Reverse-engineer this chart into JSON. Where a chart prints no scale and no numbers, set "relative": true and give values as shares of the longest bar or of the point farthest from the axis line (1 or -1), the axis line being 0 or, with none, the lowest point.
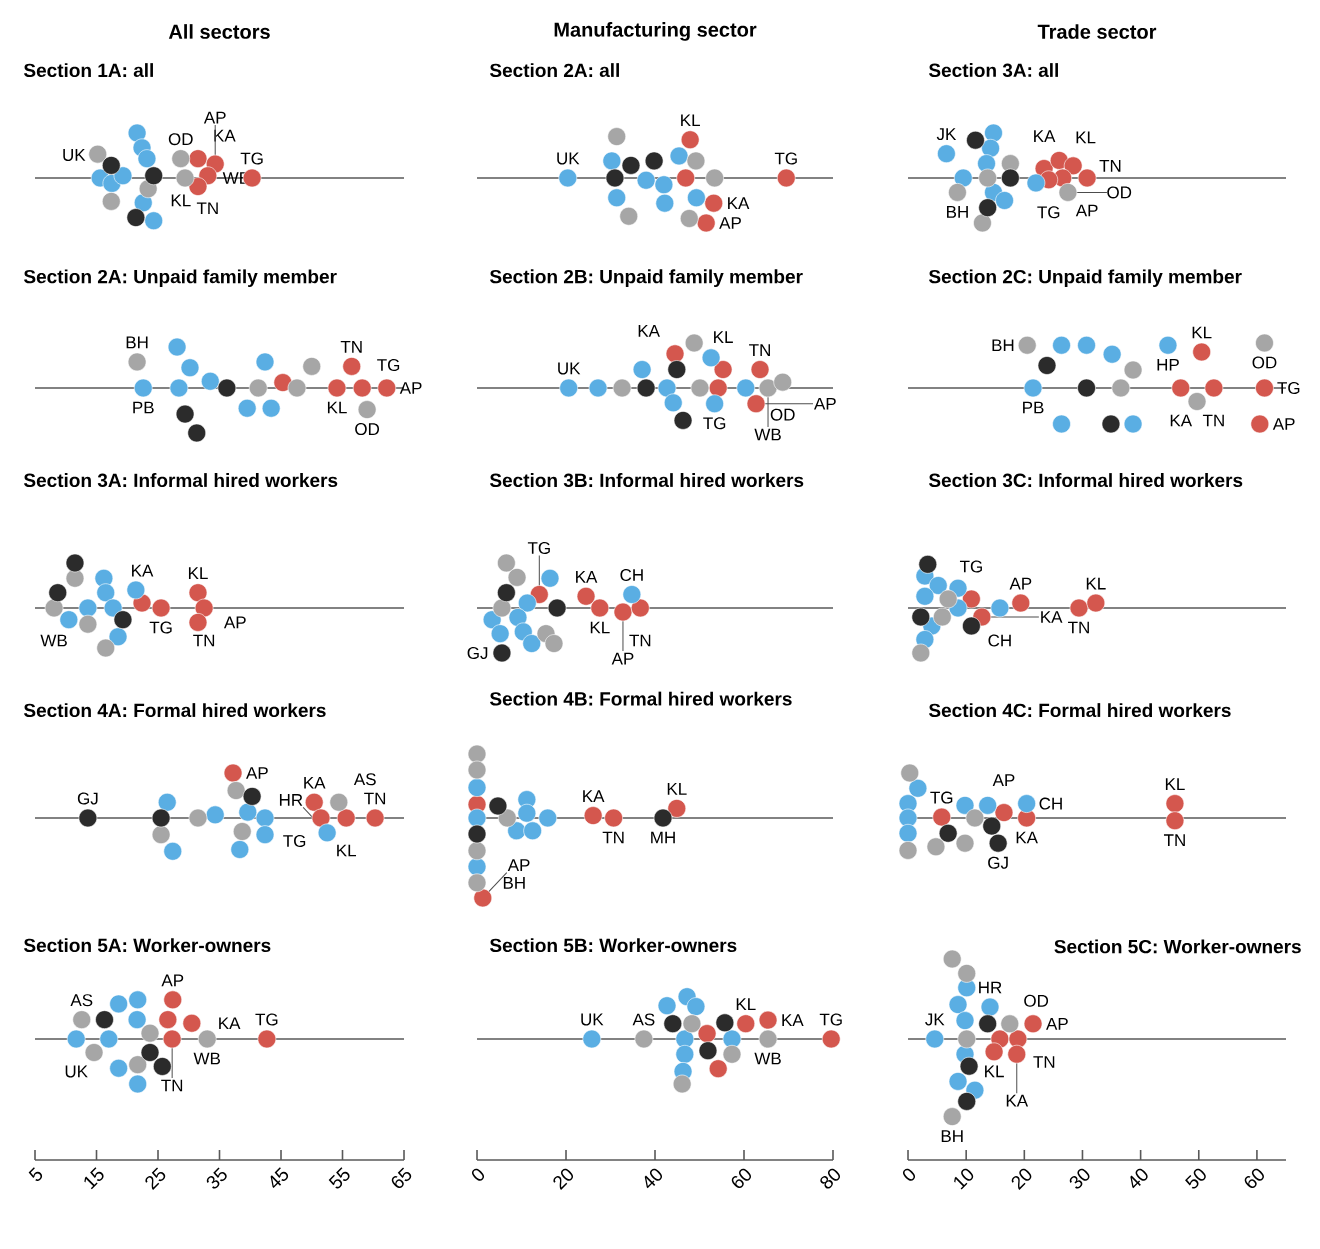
{
  "chart_data": [
    {
      "type": "scatter",
      "title": "Section 1A: all",
      "relative": true,
      "marker": "circle",
      "xlim": [
        5,
        65
      ],
      "annotations": [
        "All sectors",
        {
          "text": "UK",
          "x": 15.6,
          "y": 0
        },
        {
          "text": "OD",
          "x": 28.7,
          "y": 0.43
        },
        {
          "text": "KA",
          "x": 31.5,
          "y": 0.43
        },
        {
          "text": "AP",
          "x": 34.3,
          "y": 0.31
        },
        {
          "text": "TG",
          "x": 40.3,
          "y": 0
        },
        {
          "text": "TN",
          "x": 33.1,
          "y": 0.05
        },
        {
          "text": "WB",
          "x": 29.4,
          "y": 0
        },
        {
          "text": "KL",
          "x": 31.5,
          "y": -0.19
        }
      ],
      "series": [
        {
          "color": "#d4574e",
          "x": [
            31.5,
            34.3,
            33.1,
            31.5,
            40.3
          ],
          "values": [
            0.43,
            0.31,
            0.05,
            -0.19,
            0
          ]
        },
        {
          "color": "#5aaee3",
          "x": [
            21.6,
            22.4,
            23.2,
            15.6,
            17.5,
            19.3,
            22.6,
            24.3
          ],
          "values": [
            1.0,
            0.67,
            0.43,
            0,
            -0.12,
            0.05,
            -0.55,
            -0.95
          ]
        },
        {
          "color": "#a6a6a6",
          "x": [
            15.2,
            17.4,
            23.4,
            28.7,
            29.4
          ],
          "values": [
            0.53,
            -0.52,
            -0.24,
            0.43,
            0
          ]
        },
        {
          "color": "#2b2b2b",
          "x": [
            17.4,
            21.4,
            24.3
          ],
          "values": [
            0.28,
            -0.88,
            0.05
          ]
        }
      ]
    },
    {
      "type": "scatter",
      "title": "Section 2A: all",
      "relative": true,
      "marker": "circle",
      "xlim": [
        0,
        80
      ],
      "annotations": [
        "Manufacturing sector",
        {
          "text": "KL",
          "x": 47.9,
          "y": 0.85
        },
        {
          "text": "TG",
          "x": 69.5,
          "y": 0
        },
        {
          "text": "UK",
          "x": 20.4,
          "y": 0
        },
        {
          "text": "KA",
          "x": 53.2,
          "y": -0.56
        },
        {
          "text": "AP",
          "x": 51.5,
          "y": -1.0
        }
      ],
      "series": [
        {
          "color": "#d4574e",
          "x": [
            47.9,
            46.9,
            53.2,
            51.5,
            69.5
          ],
          "values": [
            0.85,
            0,
            -0.56,
            -1.0,
            0
          ]
        },
        {
          "color": "#5aaee3",
          "x": [
            20.4,
            30.3,
            31.4,
            38.0,
            42.0,
            42.2,
            45.4,
            49.3
          ],
          "values": [
            0,
            0.38,
            -0.44,
            -0.05,
            -0.15,
            -0.56,
            0.49,
            -0.44
          ]
        },
        {
          "color": "#a6a6a6",
          "x": [
            31.4,
            34.1,
            49.2,
            53.4,
            47.7
          ],
          "values": [
            0.92,
            -0.85,
            0.38,
            0,
            -0.9
          ]
        },
        {
          "color": "#2b2b2b",
          "x": [
            34.6,
            39.8,
            31.0
          ],
          "values": [
            0.28,
            0.38,
            0
          ]
        }
      ]
    },
    {
      "type": "scatter",
      "title": "Section 3A: all",
      "relative": true,
      "marker": "circle",
      "xlim": [
        0,
        65
      ],
      "annotations": [
        "Trade sector",
        {
          "text": "KA",
          "x": 23.4,
          "y": 0.21
        },
        {
          "text": "KL",
          "x": 26.0,
          "y": 0.39
        },
        {
          "text": "JK",
          "x": 6.6,
          "y": 0.54
        },
        {
          "text": "TN",
          "x": 28.4,
          "y": 0.27
        },
        {
          "text": "AP",
          "x": 30.8,
          "y": 0
        },
        {
          "text": "BH",
          "x": 8.5,
          "y": -0.32
        },
        {
          "text": "TG",
          "x": 24.2,
          "y": -0.04
        },
        {
          "text": "OD",
          "x": 27.5,
          "y": -0.32
        }
      ],
      "series": [
        {
          "color": "#d4574e",
          "x": [
            23.4,
            26.0,
            28.4,
            26.6,
            24.2,
            30.8
          ],
          "values": [
            0.21,
            0.39,
            0.27,
            0,
            -0.04,
            0
          ]
        },
        {
          "color": "#5aaee3",
          "x": [
            14.7,
            14.2,
            13.5,
            6.6,
            9.5,
            14.7,
            16.6,
            22.0
          ],
          "values": [
            1.0,
            0.66,
            0.32,
            0.54,
            0,
            -0.32,
            -0.5,
            -0.11
          ]
        },
        {
          "color": "#a6a6a6",
          "x": [
            17.6,
            13.7,
            8.5,
            12.8,
            27.5
          ],
          "values": [
            0.32,
            0,
            -0.32,
            -1.0,
            -0.32
          ]
        },
        {
          "color": "#2b2b2b",
          "x": [
            11.6,
            17.6,
            13.7
          ],
          "values": [
            0.84,
            0,
            -0.66
          ]
        }
      ]
    },
    {
      "type": "scatter",
      "title": "Section 2A: Unpaid family member",
      "relative": true,
      "marker": "circle",
      "xlim": [
        5,
        65
      ],
      "annotations": [
        {
          "text": "BH",
          "x": 21.6,
          "y": 0.58
        },
        {
          "text": "PB",
          "x": 22.6,
          "y": 0
        },
        {
          "text": "KL",
          "x": 54.1,
          "y": 0
        },
        {
          "text": "TN",
          "x": 56.5,
          "y": 0.48
        },
        {
          "text": "TG",
          "x": 58.2,
          "y": 0
        },
        {
          "text": "AP",
          "x": 62.2,
          "y": 0
        },
        {
          "text": "OD",
          "x": 59.0,
          "y": -0.48
        }
      ],
      "series": [
        {
          "color": "#d4574e",
          "x": [
            45.3,
            54.1,
            56.5,
            58.2,
            62.2
          ],
          "values": [
            0.12,
            0,
            0.48,
            0,
            0
          ]
        },
        {
          "color": "#5aaee3",
          "x": [
            22.6,
            28.1,
            30.2,
            28.4,
            33.5,
            42.4,
            39.5,
            43.4
          ],
          "values": [
            0,
            0.91,
            0.45,
            0,
            0.15,
            0.58,
            -0.45,
            -0.45
          ]
        },
        {
          "color": "#a6a6a6",
          "x": [
            21.6,
            41.3,
            47.6,
            50.0,
            59.0
          ],
          "values": [
            0.58,
            0,
            0,
            0.48,
            -0.48
          ]
        },
        {
          "color": "#2b2b2b",
          "x": [
            29.4,
            31.3,
            36.2
          ],
          "values": [
            -0.58,
            -1.0,
            0
          ]
        }
      ]
    },
    {
      "type": "scatter",
      "title": "Section 2B: Unpaid family member",
      "relative": true,
      "marker": "circle",
      "xlim": [
        0,
        80
      ],
      "annotations": [
        {
          "text": "KA",
          "x": 44.5,
          "y": 0.76
        },
        {
          "text": "KL",
          "x": 55.3,
          "y": 0.41
        },
        {
          "text": "UK",
          "x": 20.6,
          "y": 0
        },
        {
          "text": "TN",
          "x": 63.6,
          "y": 0.41
        },
        {
          "text": "OD",
          "x": 68.7,
          "y": 0.13
        },
        {
          "text": "WB",
          "x": 65.4,
          "y": 0
        },
        {
          "text": "TG",
          "x": 53.4,
          "y": -0.35
        },
        {
          "text": "AP",
          "x": 62.7,
          "y": -0.35
        }
      ],
      "series": [
        {
          "color": "#d4574e",
          "x": [
            44.5,
            55.3,
            54.2,
            63.6,
            62.7
          ],
          "values": [
            0.76,
            0.41,
            0,
            0.41,
            -0.35
          ]
        },
        {
          "color": "#5aaee3",
          "x": [
            20.6,
            27.2,
            37.1,
            42.7,
            44.1,
            52.6,
            53.4,
            60.4
          ],
          "values": [
            0,
            0,
            0.41,
            0,
            -0.33,
            0.67,
            -0.35,
            0
          ]
        },
        {
          "color": "#a6a6a6",
          "x": [
            32.6,
            48.8,
            50.1,
            65.4,
            68.7
          ],
          "values": [
            0,
            1.0,
            0,
            0,
            0.13
          ]
        },
        {
          "color": "#2b2b2b",
          "x": [
            38.0,
            44.9,
            46.3
          ],
          "values": [
            0,
            0.41,
            -0.72
          ]
        }
      ]
    },
    {
      "type": "scatter",
      "title": "Section 2C: Unpaid family member",
      "relative": true,
      "marker": "circle",
      "xlim": [
        0,
        65
      ],
      "annotations": [
        {
          "text": "BH",
          "x": 20.5,
          "y": 0.95
        },
        {
          "text": "HP",
          "x": 44.7,
          "y": 0.95
        },
        {
          "text": "KL",
          "x": 50.5,
          "y": 0.8
        },
        {
          "text": "OD",
          "x": 61.3,
          "y": 1.0
        },
        {
          "text": "TG",
          "x": 61.3,
          "y": 0
        },
        {
          "text": "PB",
          "x": 21.5,
          "y": 0
        },
        {
          "text": "KA",
          "x": 46.9,
          "y": 0
        },
        {
          "text": "TN",
          "x": 52.6,
          "y": 0
        },
        {
          "text": "AP",
          "x": 60.5,
          "y": -0.8
        }
      ],
      "series": [
        {
          "color": "#d4574e",
          "x": [
            46.9,
            50.5,
            52.6,
            61.3,
            60.5
          ],
          "values": [
            0,
            0.8,
            0,
            0,
            -0.8
          ]
        },
        {
          "color": "#5aaee3",
          "x": [
            21.5,
            26.4,
            26.4,
            30.7,
            35.1,
            38.7,
            44.7
          ],
          "values": [
            0,
            0.95,
            -0.8,
            0.95,
            0.75,
            -0.8,
            0.95
          ]
        },
        {
          "color": "#a6a6a6",
          "x": [
            20.5,
            36.6,
            38.7,
            49.7,
            61.3
          ],
          "values": [
            0.95,
            0,
            0.4,
            -0.3,
            1.0
          ]
        },
        {
          "color": "#2b2b2b",
          "x": [
            23.9,
            30.7,
            34.9
          ],
          "values": [
            0.5,
            0,
            -0.8
          ]
        }
      ]
    },
    {
      "type": "scatter",
      "title": "Section 3A: Informal hired workers",
      "relative": true,
      "marker": "circle",
      "xlim": [
        5,
        65
      ],
      "annotations": [
        {
          "text": "KA",
          "x": 22.4,
          "y": 0.11
        },
        {
          "text": "KL",
          "x": 31.5,
          "y": 0.34
        },
        {
          "text": "TN",
          "x": 32.5,
          "y": 0
        },
        {
          "text": "WB",
          "x": 8.1,
          "y": 0
        },
        {
          "text": "TG",
          "x": 25.5,
          "y": 0
        },
        {
          "text": "AP",
          "x": 31.5,
          "y": -0.32
        }
      ],
      "series": [
        {
          "color": "#d4574e",
          "x": [
            22.4,
            25.5,
            31.5,
            32.5,
            31.5
          ],
          "values": [
            0.11,
            0,
            0.34,
            0,
            -0.32
          ]
        },
        {
          "color": "#5aaee3",
          "x": [
            10.5,
            13.6,
            16.2,
            16.5,
            17.7,
            18.5,
            21.4
          ],
          "values": [
            -0.26,
            0,
            0.66,
            0.34,
            0,
            -0.64,
            0.4
          ]
        },
        {
          "color": "#a6a6a6",
          "x": [
            11.5,
            8.1,
            13.6,
            16.5
          ],
          "values": [
            0.66,
            0,
            -0.36,
            -0.89
          ]
        },
        {
          "color": "#2b2b2b",
          "x": [
            11.5,
            8.7,
            19.3
          ],
          "values": [
            1.0,
            0.34,
            -0.26
          ]
        }
      ]
    },
    {
      "type": "scatter",
      "title": "Section 3B: Informal hired workers",
      "relative": true,
      "marker": "circle",
      "xlim": [
        0,
        80
      ],
      "annotations": [
        {
          "text": "TG",
          "x": 14.0,
          "y": 0.3
        },
        {
          "text": "KA",
          "x": 24.5,
          "y": 0.26
        },
        {
          "text": "KL",
          "x": 27.6,
          "y": 0
        },
        {
          "text": "CH",
          "x": 34.8,
          "y": 0.3
        },
        {
          "text": "TN",
          "x": 36.7,
          "y": 0
        },
        {
          "text": "AP",
          "x": 32.8,
          "y": -0.09
        },
        {
          "text": "GJ",
          "x": 5.6,
          "y": -1.0
        }
      ],
      "series": [
        {
          "color": "#d4574e",
          "x": [
            14.0,
            24.5,
            27.6,
            32.8,
            36.7
          ],
          "values": [
            0.3,
            0.26,
            0,
            -0.09,
            0
          ]
        },
        {
          "color": "#5aaee3",
          "x": [
            3.4,
            5.2,
            11.3,
            9.2,
            10.4,
            12.3,
            16.4,
            34.8
          ],
          "values": [
            -0.26,
            -0.57,
            0.11,
            -0.21,
            -0.53,
            -0.79,
            0.66,
            0.3
          ]
        },
        {
          "color": "#a6a6a6",
          "x": [
            6.6,
            9.0,
            5.6,
            15.5,
            17.3
          ],
          "values": [
            1.0,
            0.68,
            0,
            -0.57,
            -0.79
          ]
        },
        {
          "color": "#2b2b2b",
          "x": [
            6.6,
            5.6,
            18.0
          ],
          "values": [
            0.34,
            -1.0,
            0
          ]
        }
      ]
    },
    {
      "type": "scatter",
      "title": "Section 3C: Informal hired workers",
      "relative": true,
      "marker": "circle",
      "xlim": [
        0,
        65
      ],
      "annotations": [
        {
          "text": "TG",
          "x": 10.9,
          "y": 0.2
        },
        {
          "text": "AP",
          "x": 19.4,
          "y": 0.11
        },
        {
          "text": "KL",
          "x": 32.3,
          "y": 0.11
        },
        {
          "text": "CH",
          "x": 15.8,
          "y": 0
        },
        {
          "text": "TN",
          "x": 29.4,
          "y": 0
        },
        {
          "text": "KA",
          "x": 12.7,
          "y": -0.2
        }
      ],
      "series": [
        {
          "color": "#d4574e",
          "x": [
            10.9,
            12.7,
            19.4,
            29.4,
            32.3
          ],
          "values": [
            0.2,
            -0.2,
            0.11,
            0,
            0.11
          ]
        },
        {
          "color": "#5aaee3",
          "x": [
            2.9,
            5.2,
            8.6,
            2.9,
            8.6,
            4.1,
            2.9,
            15.8
          ],
          "values": [
            0.71,
            0.5,
            0.44,
            0.26,
            0,
            -0.4,
            -0.7,
            0
          ]
        },
        {
          "color": "#a6a6a6",
          "x": [
            6.9,
            5.9,
            2.2
          ],
          "values": [
            0.2,
            -0.2,
            -1.0
          ]
        },
        {
          "color": "#2b2b2b",
          "x": [
            3.4,
            2.2,
            10.9
          ],
          "values": [
            0.97,
            -0.2,
            -0.4
          ]
        }
      ]
    },
    {
      "type": "scatter",
      "title": "Section 4A: Formal hired workers",
      "relative": true,
      "marker": "circle",
      "xlim": [
        5,
        65
      ],
      "annotations": [
        {
          "text": "AP",
          "x": 37.2,
          "y": 1.0
        },
        {
          "text": "KA",
          "x": 50.4,
          "y": 0.35
        },
        {
          "text": "AS",
          "x": 54.4,
          "y": 0.35
        },
        {
          "text": "GJ",
          "x": 13.6,
          "y": 0
        },
        {
          "text": "TN",
          "x": 60.3,
          "y": 0
        },
        {
          "text": "TG",
          "x": 51.5,
          "y": 0
        },
        {
          "text": "KL",
          "x": 55.6,
          "y": 0
        },
        {
          "text": "HR",
          "x": 52.5,
          "y": -0.33
        }
      ],
      "series": [
        {
          "color": "#d4574e",
          "x": [
            37.2,
            50.4,
            51.5,
            55.6,
            60.3
          ],
          "values": [
            1.0,
            0.35,
            0,
            0,
            0
          ]
        },
        {
          "color": "#5aaee3",
          "x": [
            26.5,
            27.4,
            34.3,
            39.6,
            38.3,
            42.4,
            42.4,
            52.5
          ],
          "values": [
            0.35,
            -0.74,
            0.07,
            0.13,
            -0.7,
            0,
            -0.37,
            -0.33
          ]
        },
        {
          "color": "#a6a6a6",
          "x": [
            25.5,
            31.5,
            37.7,
            38.7,
            54.4
          ],
          "values": [
            -0.37,
            0,
            0.61,
            -0.3,
            0.35
          ]
        },
        {
          "color": "#2b2b2b",
          "x": [
            13.6,
            25.5,
            40.3
          ],
          "values": [
            0,
            0,
            0.48
          ]
        }
      ]
    },
    {
      "type": "scatter",
      "title": "Section 4B: Formal hired workers",
      "relative": true,
      "marker": "circle",
      "xlim": [
        0,
        80
      ],
      "annotations": [
        {
          "text": "KA",
          "x": 26.1,
          "y": 0.03
        },
        {
          "text": "KL",
          "x": 44.9,
          "y": 0.12
        },
        {
          "text": "TN",
          "x": 30.7,
          "y": 0
        },
        {
          "text": "MH",
          "x": 41.8,
          "y": 0
        },
        {
          "text": "BH",
          "x": 0,
          "y": -0.81
        },
        {
          "text": "AP",
          "x": 1.3,
          "y": -1.0
        }
      ],
      "series": [
        {
          "color": "#d4574e",
          "x": [
            0,
            1.3,
            26.1,
            30.7,
            44.9
          ],
          "values": [
            0.17,
            -1.0,
            0.03,
            0,
            0.12
          ]
        },
        {
          "color": "#5aaee3",
          "x": [
            0,
            0,
            0,
            11.2,
            11.2,
            8.9,
            12.5,
            15.9
          ],
          "values": [
            0.38,
            0,
            -0.61,
            0.23,
            0.06,
            -0.16,
            -0.16,
            0
          ]
        },
        {
          "color": "#a6a6a6",
          "x": [
            0,
            0,
            0,
            0,
            6.8
          ],
          "values": [
            0.8,
            0.6,
            -0.41,
            -0.81,
            0
          ]
        },
        {
          "color": "#2b2b2b",
          "x": [
            0,
            4.7,
            41.8
          ],
          "values": [
            -0.2,
            0.15,
            0
          ]
        }
      ]
    },
    {
      "type": "scatter",
      "title": "Section 4C: Formal hired workers",
      "relative": true,
      "marker": "circle",
      "xlim": [
        0,
        65
      ],
      "annotations": [
        {
          "text": "TG",
          "x": 5.8,
          "y": 0.02
        },
        {
          "text": "AP",
          "x": 16.5,
          "y": 0.12
        },
        {
          "text": "KL",
          "x": 45.9,
          "y": 0.32
        },
        {
          "text": "CH",
          "x": 20.4,
          "y": 0.32
        },
        {
          "text": "KA",
          "x": 20.4,
          "y": 0
        },
        {
          "text": "TN",
          "x": 45.9,
          "y": -0.06
        },
        {
          "text": "GJ",
          "x": 15.5,
          "y": -0.56
        }
      ],
      "series": [
        {
          "color": "#d4574e",
          "x": [
            5.8,
            16.5,
            20.4,
            45.9,
            45.9
          ],
          "values": [
            0.02,
            0.12,
            0,
            0.32,
            -0.06
          ]
        },
        {
          "color": "#5aaee3",
          "x": [
            1.7,
            0,
            0,
            0,
            9.8,
            13.7,
            20.4
          ],
          "values": [
            0.66,
            0.32,
            0,
            -0.34,
            0.28,
            0.28,
            0.32
          ]
        },
        {
          "color": "#a6a6a6",
          "x": [
            0.3,
            0,
            11.5,
            9.8,
            4.8
          ],
          "values": [
            1.0,
            -0.72,
            0,
            -0.56,
            -0.64
          ]
        },
        {
          "color": "#2b2b2b",
          "x": [
            6.9,
            14.4,
            15.5
          ],
          "values": [
            -0.34,
            -0.18,
            -0.56
          ]
        }
      ]
    },
    {
      "type": "scatter",
      "title": "Section 5A: Worker-owners",
      "relative": true,
      "marker": "circle",
      "xlim": [
        5,
        65
      ],
      "xticks": [
        5,
        15,
        25,
        35,
        45,
        55,
        65
      ],
      "annotations": [
        {
          "text": "AP",
          "x": 27.4,
          "y": 0.87
        },
        {
          "text": "AS",
          "x": 12.6,
          "y": 0.43
        },
        {
          "text": "KA",
          "x": 30.5,
          "y": 0.35
        },
        {
          "text": "TG",
          "x": 42.7,
          "y": 0
        },
        {
          "text": "UK",
          "x": 11.7,
          "y": 0
        },
        {
          "text": "WB",
          "x": 33.0,
          "y": 0
        },
        {
          "text": "TN",
          "x": 27.3,
          "y": 0
        }
      ],
      "series": [
        {
          "color": "#d4574e",
          "x": [
            27.4,
            26.6,
            30.5,
            27.3,
            42.7
          ],
          "values": [
            0.87,
            0.43,
            0.35,
            0,
            0
          ]
        },
        {
          "color": "#5aaee3",
          "x": [
            11.7,
            17.0,
            18.6,
            21.7,
            21.6,
            18.6,
            21.7
          ],
          "values": [
            0,
            0,
            0.78,
            0.87,
            0.43,
            -0.65,
            -1.0
          ]
        },
        {
          "color": "#a6a6a6",
          "x": [
            12.6,
            14.6,
            21.7,
            23.7,
            33.0
          ],
          "values": [
            0.43,
            -0.3,
            -0.57,
            0.13,
            0
          ]
        },
        {
          "color": "#2b2b2b",
          "x": [
            16.3,
            23.7,
            25.7
          ],
          "values": [
            0.43,
            -0.3,
            -0.61
          ]
        }
      ]
    },
    {
      "type": "scatter",
      "title": "Section 5B: Worker-owners",
      "relative": true,
      "marker": "circle",
      "xlim": [
        0,
        80
      ],
      "xticks": [
        0,
        20,
        40,
        60,
        80
      ],
      "annotations": [
        {
          "text": "KL",
          "x": 60.4,
          "y": 0.34
        },
        {
          "text": "KA",
          "x": 65.4,
          "y": 0.42
        },
        {
          "text": "AS",
          "x": 37.5,
          "y": 0
        },
        {
          "text": "TG",
          "x": 79.6,
          "y": 0
        },
        {
          "text": "UK",
          "x": 25.8,
          "y": 0
        },
        {
          "text": "WB",
          "x": 65.4,
          "y": 0
        }
      ],
      "series": [
        {
          "color": "#d4574e",
          "x": [
            51.7,
            60.4,
            65.4,
            54.2,
            79.6
          ],
          "values": [
            0.12,
            0.34,
            0.42,
            -0.66,
            0
          ]
        },
        {
          "color": "#5aaee3",
          "x": [
            25.8,
            42.7,
            47.2,
            49.2,
            57.3,
            46.7,
            46.7,
            46.3
          ],
          "values": [
            0,
            0.74,
            0.94,
            0.72,
            0,
            0,
            -0.34,
            -0.72
          ]
        },
        {
          "color": "#a6a6a6",
          "x": [
            37.5,
            48.3,
            65.4,
            57.3,
            46.1
          ],
          "values": [
            0,
            0.34,
            0,
            -0.34,
            -1.0
          ]
        },
        {
          "color": "#2b2b2b",
          "x": [
            44.0,
            55.7,
            51.9
          ],
          "values": [
            0.34,
            0.36,
            -0.26
          ]
        }
      ]
    },
    {
      "type": "scatter",
      "title": "Section 5C: Worker-owners",
      "relative": true,
      "marker": "circle",
      "xlim": [
        0,
        65
      ],
      "xticks": [
        0,
        10,
        20,
        30,
        40,
        50,
        60
      ],
      "annotations": [
        {
          "text": "HR",
          "x": 14.1,
          "y": 0.4
        },
        {
          "text": "OD",
          "x": 17.5,
          "y": 0.19
        },
        {
          "text": "JK",
          "x": 4.6,
          "y": 0
        },
        {
          "text": "AP",
          "x": 21.5,
          "y": 0.19
        },
        {
          "text": "TN",
          "x": 18.9,
          "y": 0
        },
        {
          "text": "KL",
          "x": 14.8,
          "y": -0.16
        },
        {
          "text": "KA",
          "x": 18.7,
          "y": -0.19
        },
        {
          "text": "BH",
          "x": 7.6,
          "y": -0.97
        }
      ],
      "series": [
        {
          "color": "#d4574e",
          "x": [
            21.5,
            15.8,
            18.9,
            14.8,
            18.7
          ],
          "values": [
            0.19,
            0,
            0,
            -0.16,
            -0.19
          ]
        },
        {
          "color": "#5aaee3",
          "x": [
            10.1,
            8.6,
            9.8,
            4.6,
            14.1,
            9.8,
            8.6,
            11.5
          ],
          "values": [
            0.64,
            0.43,
            0.23,
            0,
            0.4,
            -0.19,
            -0.53,
            -0.64
          ]
        },
        {
          "color": "#a6a6a6",
          "x": [
            7.6,
            10.1,
            10.1,
            17.5,
            7.6
          ],
          "values": [
            1.0,
            0.82,
            0,
            0.19,
            -0.97
          ]
        },
        {
          "color": "#2b2b2b",
          "x": [
            13.7,
            10.5,
            10.1
          ],
          "values": [
            0.19,
            -0.34,
            -0.78
          ]
        }
      ]
    }
  ]
}
